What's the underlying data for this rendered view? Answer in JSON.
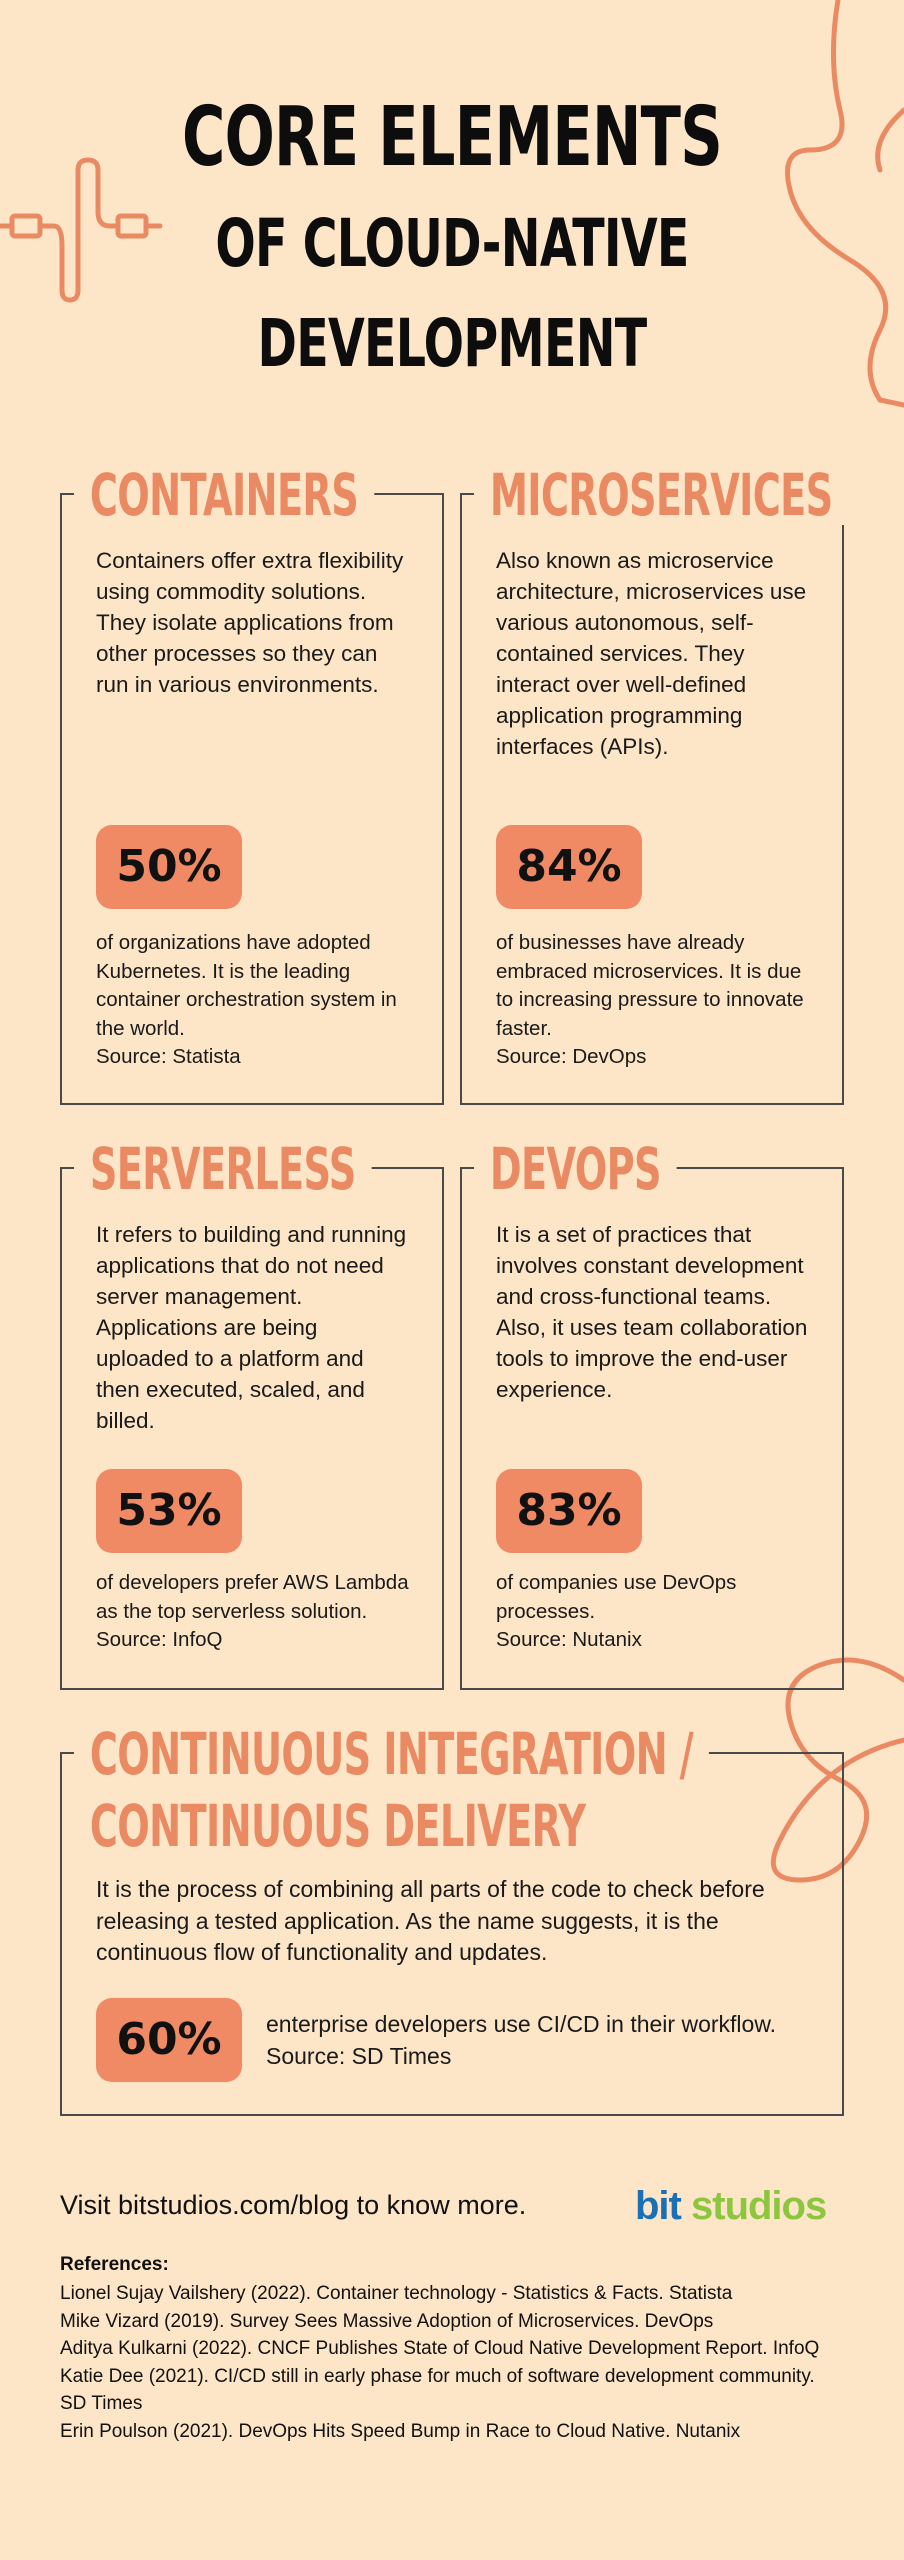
{
  "title": {
    "line1": "CORE ELEMENTS",
    "line2": "OF CLOUD-NATIVE",
    "line3": "DEVELOPMENT"
  },
  "cards": {
    "containers": {
      "heading": "CONTAINERS",
      "description": "Containers offer extra flexibility using commodity solutions. They isolate applications from other processes so they can run in various environments.",
      "stat": "50%",
      "stat_text": "of organizations have adopted Kubernetes. It is the leading container orchestration system in the world.",
      "source": "Source: Statista"
    },
    "microservices": {
      "heading": "MICROSERVICES",
      "description": "Also known as microservice architecture, microservices use various autonomous, self-contained services. They interact over well-defined application programming interfaces (APIs).",
      "stat": "84%",
      "stat_text": "of businesses have already embraced microservices. It is due to increasing pressure to innovate faster.",
      "source": "Source: DevOps"
    },
    "serverless": {
      "heading": "SERVERLESS",
      "description": "It refers to building and running applications that do not need server management. Applications are being uploaded to a platform and then executed, scaled, and billed.",
      "stat": "53%",
      "stat_text": "of developers prefer AWS Lambda as the top serverless solution. Source: InfoQ"
    },
    "devops": {
      "heading": "DEVOPS",
      "description": "It is a set of practices that involves constant development and cross-functional teams. Also, it uses team collaboration tools to improve the end-user experience.",
      "stat": "83%",
      "stat_text": "of companies use DevOps processes.",
      "source": "Source: Nutanix"
    },
    "cicd": {
      "heading_line1": "CONTINUOUS INTEGRATION /",
      "heading_line2": "CONTINUOUS DELIVERY",
      "description": "It is the process of combining all parts of the code to check before releasing a tested application. As the name suggests, it is the continuous flow of functionality and updates.",
      "stat": "60%",
      "stat_text": "enterprise developers use CI/CD in their workflow.",
      "source": "Source: SD Times"
    }
  },
  "footer": {
    "visit": "Visit bitstudios.com/blog to know more.",
    "logo_bit": "bit",
    "logo_studios": "studios"
  },
  "references": {
    "title": "References:",
    "items": [
      "Lionel Sujay Vailshery (2022). Container technology - Statistics & Facts. Statista",
      "Mike Vizard (2019). Survey Sees Massive Adoption of Microservices. DevOps",
      "Aditya Kulkarni (2022). CNCF Publishes State of Cloud Native Development Report. InfoQ",
      "Katie Dee (2021). CI/CD still in early phase for much of software development community. SD Times",
      "Erin Poulson (2021). DevOps Hits Speed Bump in Race to Cloud Native. Nutanix"
    ]
  },
  "colors": {
    "background": "#fde5c8",
    "accent": "#ea8a62",
    "pill": "#ef8a64",
    "logo_blue": "#1a6fb5",
    "logo_green": "#8cc63f"
  }
}
